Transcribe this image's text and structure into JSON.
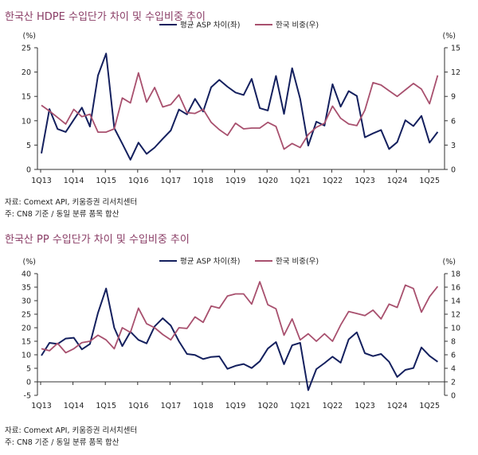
{
  "colors": {
    "asp": "#14205e",
    "share": "#a8506e",
    "title": "#8a3d66"
  },
  "chart_data": [
    {
      "type": "line",
      "title": "한국산 HDPE 수입단가 차이 및 수입비중 추이",
      "source": "자료: Comext API, 키움증권 리서치센터",
      "note": "주: CN8 기준 / 동일 분류 품목 합산",
      "left_unit": "(%)",
      "right_unit": "(%)",
      "ylim_left": [
        0,
        25
      ],
      "yticks_left": [
        0,
        5,
        10,
        15,
        20,
        25
      ],
      "ylim_right": [
        0,
        15
      ],
      "yticks_right": [
        0,
        3,
        6,
        9,
        12,
        15
      ],
      "x_start": "1Q13",
      "x_end": "2Q25",
      "x_frequency": "quarterly",
      "xtick_labels": [
        "1Q13",
        "1Q14",
        "1Q15",
        "1Q16",
        "1Q17",
        "1Q18",
        "1Q19",
        "1Q20",
        "1Q21",
        "1Q22",
        "1Q23",
        "1Q24",
        "1Q25"
      ],
      "legend_position": "top",
      "series": [
        {
          "name": "평균 ASP 차이(좌)",
          "axis": "left",
          "values": [
            3.3,
            12.4,
            8.3,
            7.7,
            10.2,
            12.7,
            8.8,
            19.3,
            23.8,
            8.5,
            5.3,
            2.0,
            5.5,
            3.2,
            4.5,
            6.3,
            8.0,
            12.3,
            11.3,
            14.5,
            11.9,
            16.9,
            18.4,
            17.0,
            15.8,
            15.3,
            18.6,
            12.6,
            12.1,
            19.2,
            11.4,
            20.8,
            14.5,
            4.9,
            9.8,
            9.0,
            17.5,
            12.9,
            16.1,
            15.1,
            6.6,
            7.4,
            8.1,
            4.2,
            5.6,
            10.1,
            8.9,
            11.0,
            5.5,
            7.7
          ]
        },
        {
          "name": "한국 비중(우)",
          "axis": "right",
          "values": [
            7.9,
            7.2,
            6.4,
            5.6,
            7.4,
            6.5,
            6.8,
            4.6,
            4.6,
            5.0,
            8.8,
            8.2,
            11.9,
            8.3,
            10.1,
            7.7,
            8.0,
            9.2,
            7.0,
            6.9,
            7.4,
            5.8,
            4.9,
            4.2,
            5.7,
            5.0,
            5.1,
            5.1,
            5.8,
            5.3,
            2.5,
            3.2,
            2.7,
            4.3,
            5.2,
            5.7,
            7.8,
            6.3,
            5.6,
            5.4,
            7.3,
            10.7,
            10.4,
            9.7,
            9.0,
            9.8,
            10.6,
            9.9,
            8.1,
            11.6
          ]
        }
      ]
    },
    {
      "type": "line",
      "title": "한국산 PP 수입단가 차이 및 수입비중 추이",
      "source": "자료: Comext API, 키움증권 리서치센터",
      "note": "주: CN8 기준 / 동일 분류 품목 합산",
      "left_unit": "(%)",
      "right_unit": "(%)",
      "ylim_left": [
        -5,
        40
      ],
      "yticks_left": [
        -5,
        0,
        5,
        10,
        15,
        20,
        25,
        30,
        35,
        40
      ],
      "ylim_right": [
        0,
        18
      ],
      "yticks_right": [
        0,
        2,
        4,
        6,
        8,
        10,
        12,
        14,
        16,
        18
      ],
      "x_start": "1Q13",
      "x_end": "2Q25",
      "x_frequency": "quarterly",
      "xtick_labels": [
        "1Q13",
        "1Q14",
        "1Q15",
        "1Q16",
        "1Q17",
        "1Q18",
        "1Q19",
        "1Q20",
        "1Q21",
        "1Q22",
        "1Q23",
        "1Q24",
        "1Q25"
      ],
      "legend_position": "top",
      "series": [
        {
          "name": "평균 ASP 차이(좌)",
          "axis": "left",
          "values": [
            9.7,
            14.4,
            14.0,
            16.0,
            16.3,
            12.0,
            14.0,
            25.5,
            34.5,
            20.0,
            13.2,
            18.5,
            15.5,
            14.2,
            20.5,
            23.5,
            20.8,
            15.0,
            10.3,
            9.9,
            8.4,
            9.2,
            9.4,
            4.8,
            5.9,
            6.6,
            5.1,
            7.6,
            12.3,
            14.7,
            6.5,
            13.5,
            14.4,
            -3.1,
            4.7,
            6.9,
            9.3,
            7.1,
            15.7,
            18.3,
            10.6,
            9.5,
            10.3,
            7.4,
            1.8,
            4.4,
            5.1,
            12.7,
            9.6,
            7.4
          ]
        },
        {
          "name": "한국 비중(우)",
          "axis": "right",
          "values": [
            6.9,
            6.6,
            7.7,
            6.3,
            6.9,
            7.8,
            8.0,
            8.9,
            8.2,
            6.9,
            10.0,
            9.3,
            12.9,
            10.6,
            10.0,
            9.0,
            8.2,
            10.0,
            9.9,
            11.6,
            10.8,
            13.2,
            12.9,
            14.7,
            15.0,
            15.0,
            13.5,
            16.8,
            13.4,
            12.8,
            8.9,
            11.3,
            8.2,
            9.1,
            8.0,
            9.1,
            8.0,
            10.4,
            12.4,
            12.1,
            11.8,
            12.6,
            11.3,
            13.5,
            13.0,
            16.3,
            15.8,
            12.3,
            14.6,
            16.1
          ]
        }
      ]
    }
  ]
}
